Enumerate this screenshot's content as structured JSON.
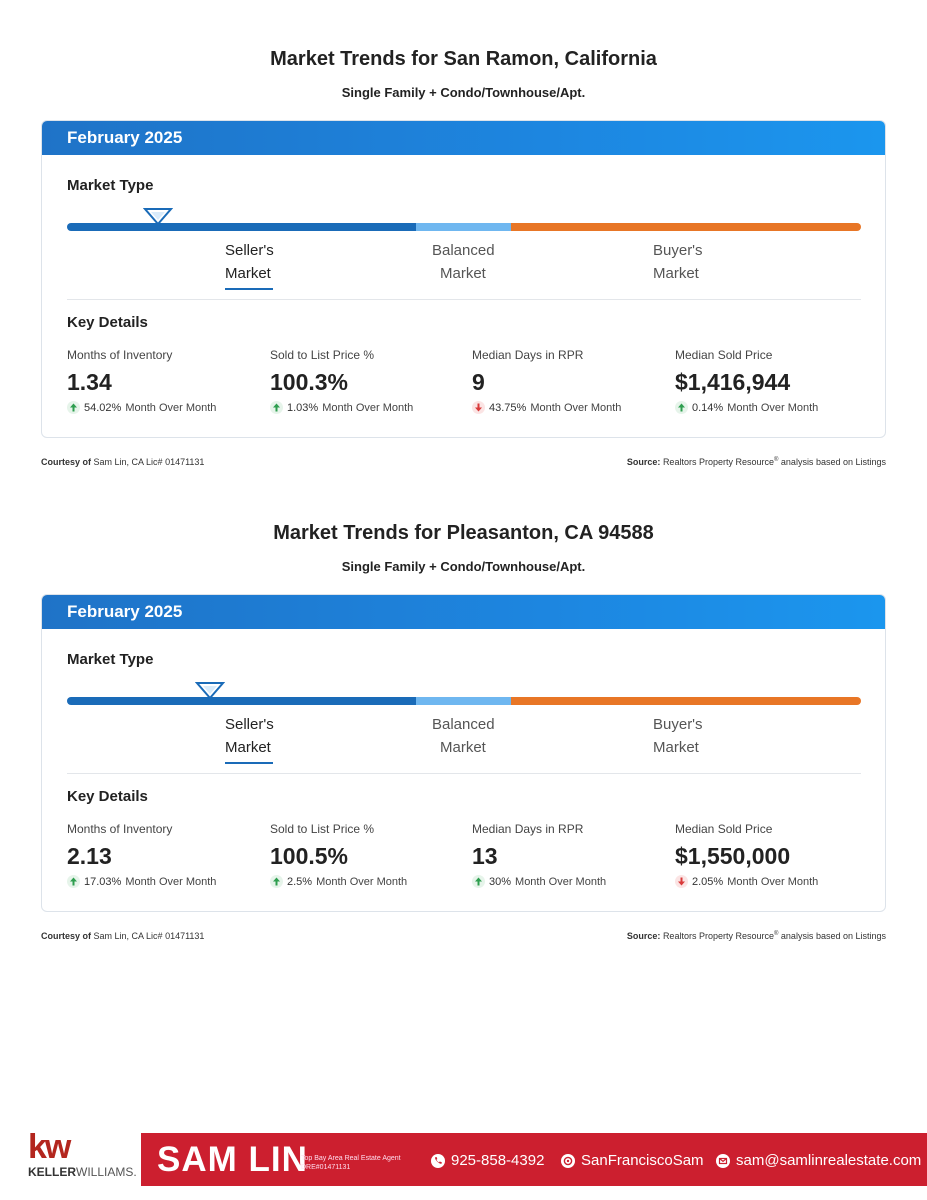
{
  "reports": [
    {
      "title": "Market Trends for San Ramon, California",
      "subtitle": "Single Family + Condo/Townhouse/Apt.",
      "period": "February 2025",
      "market_type_label": "Market Type",
      "market_types": [
        {
          "line1": "Seller's",
          "line2": "Market"
        },
        {
          "line1": "Balanced",
          "line2": "Market"
        },
        {
          "line1": "Buyer's",
          "line2": "Market"
        }
      ],
      "indicator_position_fraction": 0.114,
      "key_details_label": "Key Details",
      "metrics": [
        {
          "label": "Months of Inventory",
          "value": "1.34",
          "change": "54.02%",
          "direction": "up",
          "suffix": "Month Over Month"
        },
        {
          "label": "Sold to List Price %",
          "value": "100.3%",
          "change": "1.03%",
          "direction": "up",
          "suffix": "Month Over Month"
        },
        {
          "label": "Median Days in RPR",
          "value": "9",
          "change": "43.75%",
          "direction": "down",
          "suffix": "Month Over Month"
        },
        {
          "label": "Median Sold Price",
          "value": "$1,416,944",
          "change": "0.14%",
          "direction": "up",
          "suffix": "Month Over Month"
        }
      ],
      "courtesy_label": "Courtesy of",
      "courtesy_text": "Sam Lin, CA Lic# 01471131",
      "source_label": "Source:",
      "source_text": "Realtors Property Resource",
      "source_mark": "®",
      "source_tail": "analysis based on Listings"
    },
    {
      "title": "Market Trends for Pleasanton, CA 94588",
      "subtitle": "Single Family + Condo/Townhouse/Apt.",
      "period": "February 2025",
      "market_type_label": "Market Type",
      "market_types": [
        {
          "line1": "Seller's",
          "line2": "Market"
        },
        {
          "line1": "Balanced",
          "line2": "Market"
        },
        {
          "line1": "Buyer's",
          "line2": "Market"
        }
      ],
      "indicator_position_fraction": 0.179,
      "key_details_label": "Key Details",
      "metrics": [
        {
          "label": "Months of Inventory",
          "value": "2.13",
          "change": "17.03%",
          "direction": "up",
          "suffix": "Month Over Month"
        },
        {
          "label": "Sold to List Price %",
          "value": "100.5%",
          "change": "2.5%",
          "direction": "up",
          "suffix": "Month Over Month"
        },
        {
          "label": "Median Days in RPR",
          "value": "13",
          "change": "30%",
          "direction": "up",
          "suffix": "Month Over Month"
        },
        {
          "label": "Median Sold Price",
          "value": "$1,550,000",
          "change": "2.05%",
          "direction": "down",
          "suffix": "Month Over Month"
        }
      ],
      "courtesy_label": "Courtesy of",
      "courtesy_text": "Sam Lin, CA Lic# 01471131",
      "source_label": "Source:",
      "source_text": "Realtors Property Resource",
      "source_mark": "®",
      "source_tail": "analysis based on Listings"
    }
  ],
  "branding": {
    "logo_mark": "kw",
    "logo_name_bold": "KELLER",
    "logo_name_rest": "WILLIAMS.",
    "agent_name": "SAM LIN",
    "agent_tagline": "Top Bay Area Real Estate Agent",
    "agent_license": "DRE#01471131",
    "phone": "925-858-4392",
    "social": "SanFranciscoSam",
    "email": "sam@samlinrealestate.com"
  },
  "colors": {
    "header_blue": "#1d86e0",
    "seller_blue": "#1a6bb8",
    "balanced_light_blue": "#6fb7f0",
    "buyer_orange": "#e87626",
    "up_green": "#2e9e4f",
    "down_red": "#d93a3a",
    "brand_red": "#cc1f2f"
  }
}
